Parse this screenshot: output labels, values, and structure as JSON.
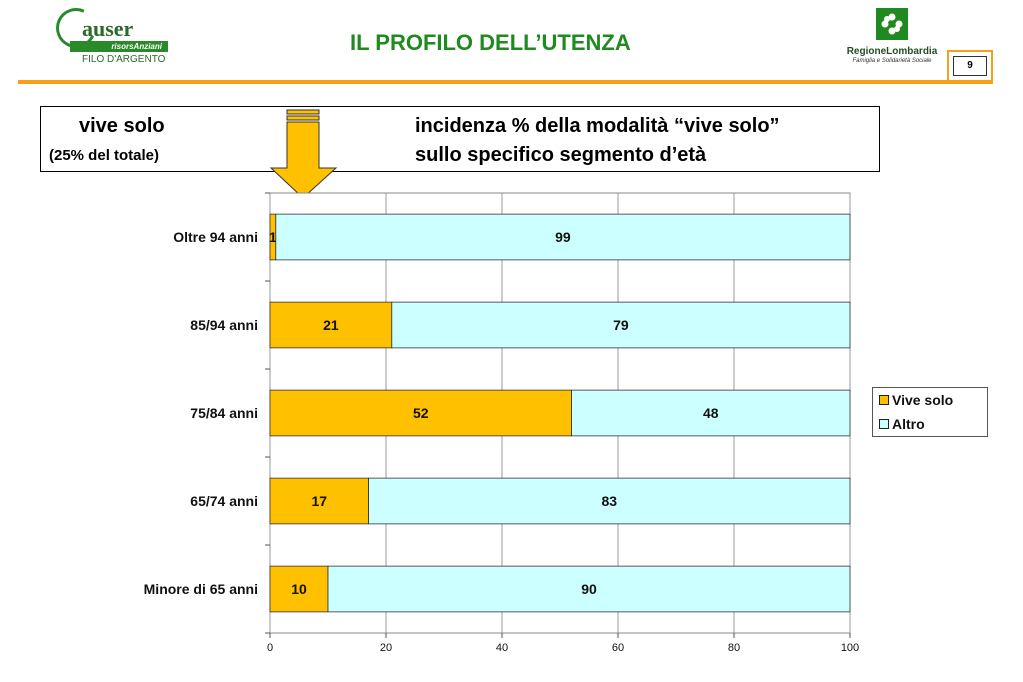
{
  "header": {
    "left_logo": {
      "brand": "auser",
      "bar_text": "risorsAnziani",
      "subtitle": "FILO D'ARGENTO"
    },
    "title": "IL PROFILO DELL’UTENZA",
    "right_logo": {
      "name": "RegioneLombardia",
      "subtitle": "Famiglia e Solidarietà Sociale"
    },
    "page_number": "9"
  },
  "description": {
    "left_line1": "vive solo",
    "left_line2": "(25% del totale)",
    "right_line1": "incidenza % della modalità “vive solo”",
    "right_line2": "sullo specifico segmento d’età"
  },
  "colors": {
    "accent": "#f4a11a",
    "title_green": "#1f8a1f",
    "vive_solo": "#ffc000",
    "altro": "#ccffff"
  },
  "chart_data": {
    "type": "bar",
    "orientation": "horizontal",
    "stacked": true,
    "categories": [
      "Oltre 94 anni",
      "85/94 anni",
      "75/84 anni",
      "65/74 anni",
      "Minore di 65 anni"
    ],
    "series": [
      {
        "name": "Vive solo",
        "values": [
          1,
          21,
          52,
          17,
          10
        ],
        "color": "#ffc000"
      },
      {
        "name": "Altro",
        "values": [
          99,
          79,
          48,
          83,
          90
        ],
        "color": "#ccffff"
      }
    ],
    "xlim": [
      0,
      100
    ],
    "xticks": [
      0,
      20,
      40,
      60,
      80,
      100
    ],
    "grid": true,
    "legend": "right",
    "title": "",
    "xlabel": "",
    "ylabel": ""
  }
}
